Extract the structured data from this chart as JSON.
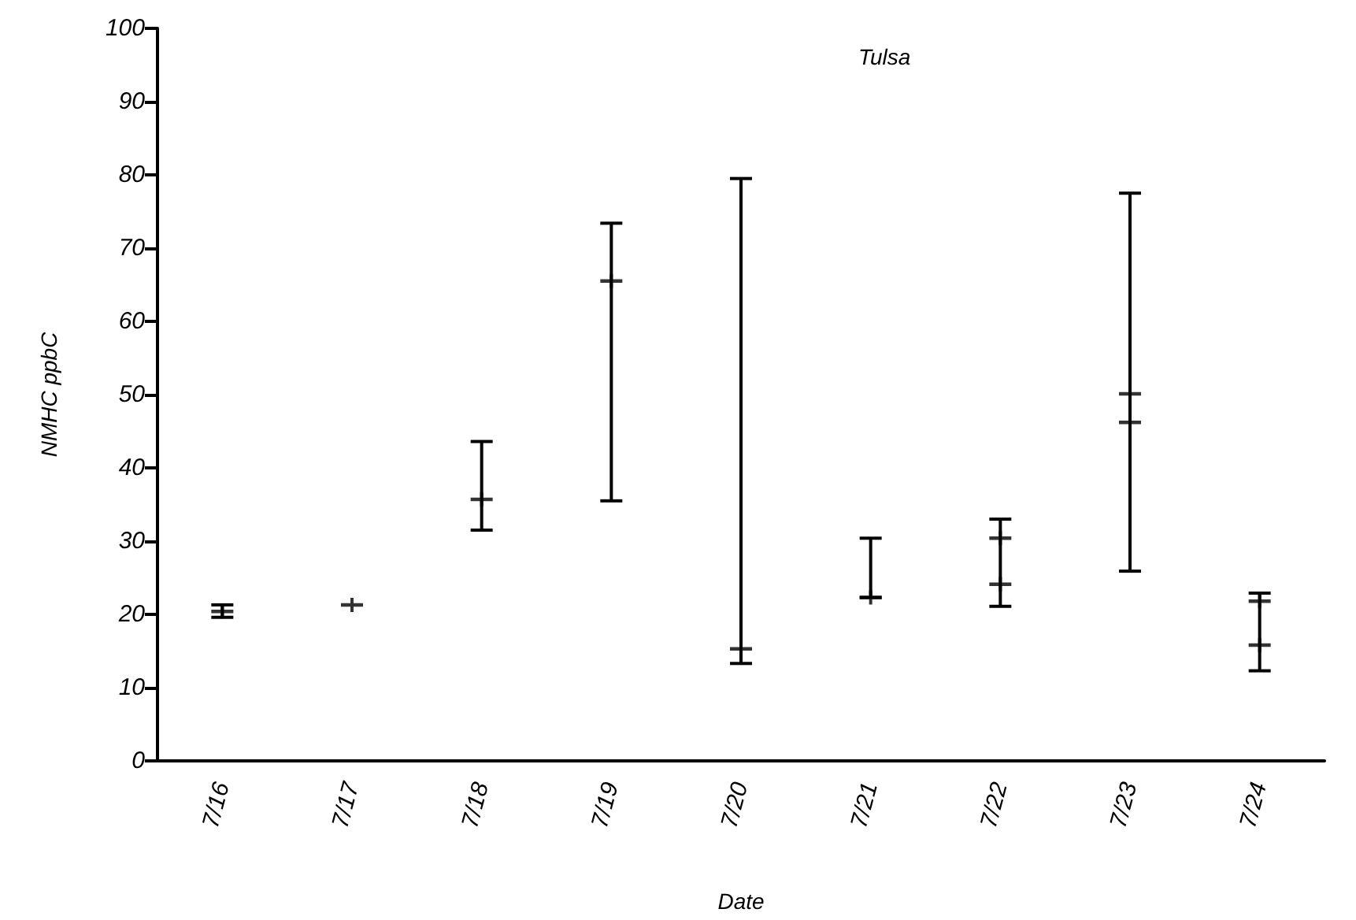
{
  "chart_data": {
    "type": "scatter",
    "title": "Tulsa",
    "xlabel": "Date",
    "ylabel": "NMHC ppbC",
    "categories": [
      "7/16",
      "7/17",
      "7/18",
      "7/19",
      "7/20",
      "7/21",
      "7/22",
      "7/23",
      "7/24"
    ],
    "ylim": [
      0,
      100
    ],
    "yticks": [
      0,
      10,
      20,
      30,
      40,
      50,
      60,
      70,
      80,
      90,
      100
    ],
    "grid": false,
    "series": [
      {
        "color": "#000000",
        "marker": "cross",
        "values": [
          20.4,
          21.3,
          35.7,
          65.5,
          15.3,
          22.3,
          30.4,
          50.1,
          21.8
        ],
        "errors": [
          [
            19.6,
            21.3
          ],
          null,
          [
            31.5,
            43.6
          ],
          [
            35.5,
            73.4
          ],
          [
            13.3,
            79.5
          ],
          [
            22.3,
            30.4
          ],
          [
            21.1,
            33.0
          ],
          [
            25.9,
            77.5
          ],
          [
            12.3,
            22.9
          ]
        ]
      },
      {
        "color": "#000000",
        "marker": "cross",
        "values": [
          null,
          null,
          null,
          null,
          null,
          null,
          24.1,
          46.2,
          15.8
        ]
      }
    ]
  }
}
